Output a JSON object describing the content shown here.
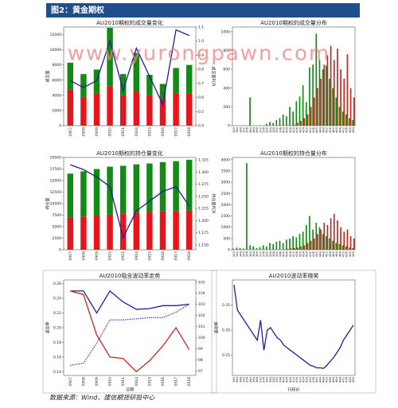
{
  "header": {
    "title": "图2：黄金期权"
  },
  "watermark": "www.yurongpawn.com",
  "source": "数据来源：Wind，建信期货研投中心",
  "chart_data": [
    {
      "type": "combo",
      "title": "AU2010期权的成交量变化",
      "ylabel": "成交量",
      "y2label": "成交量PCR",
      "categories": [
        "0907",
        "0908",
        "0909",
        "0910",
        "0911",
        "0914",
        "0915",
        "0916",
        "0917",
        "0918"
      ],
      "ylim": [
        0,
        13000
      ],
      "yticks": [
        0,
        2000,
        4000,
        6000,
        8000,
        10000,
        12000
      ],
      "y2lim": [
        0.4,
        1.1
      ],
      "y2ticks": [
        0.4,
        0.5,
        0.6,
        0.7,
        0.8,
        0.9,
        {
          "value": 1,
          "label": "1.0"
        },
        1.1
      ],
      "series": [
        {
          "color": "#e8141b",
          "values": [
            4800,
            3800,
            4200,
            5200,
            4000,
            4500,
            4000,
            3500,
            4200,
            4200
          ]
        },
        {
          "color": "#138a13",
          "values": [
            3500,
            3000,
            3200,
            7700,
            2800,
            5100,
            2700,
            2000,
            3400,
            3800
          ]
        },
        {
          "color": "#1f1f9a",
          "axis": "y2",
          "values": [
            0.72,
            0.67,
            0.72,
            1.0,
            0.65,
            0.95,
            0.75,
            0.55,
            1.08,
            1.04
          ]
        }
      ]
    },
    {
      "type": "bar",
      "title": "AU2010期权的成交量分布",
      "categories": [
        "340",
        "344",
        "348",
        "352",
        "356",
        "360",
        "364",
        "368",
        "372",
        "376",
        "380",
        "384",
        "388",
        "392",
        "396",
        "400",
        "404",
        "408",
        "412",
        "416",
        "420",
        "424",
        "428",
        "432",
        "436",
        "440",
        "444",
        "448",
        "452",
        "456",
        "460",
        "464",
        "468",
        "472",
        "476",
        "480",
        "484"
      ],
      "ylim": [
        0,
        1050
      ],
      "yticks": [
        0,
        200,
        400,
        600,
        800,
        1000
      ],
      "series": [
        {
          "color": "#138a13",
          "values": [
            0,
            0,
            0,
            0,
            0,
            300,
            0,
            0,
            0,
            0,
            20,
            40,
            30,
            60,
            80,
            120,
            100,
            200,
            150,
            260,
            310,
            430,
            250,
            620,
            650,
            980,
            700,
            600,
            640,
            500,
            400,
            300,
            200,
            150,
            120,
            80,
            60
          ]
        },
        {
          "color": "#c0281e",
          "values": [
            0,
            0,
            0,
            0,
            0,
            0,
            0,
            0,
            0,
            0,
            0,
            0,
            0,
            0,
            0,
            0,
            0,
            0,
            10,
            30,
            50,
            80,
            120,
            200,
            300,
            400,
            500,
            650,
            750,
            850,
            700,
            820,
            600,
            500,
            760,
            400,
            300
          ]
        }
      ]
    },
    {
      "type": "combo",
      "title": "AU2010期权的持仓量变化",
      "ylabel": "持仓量",
      "y2label": "持仓量PCR",
      "categories": [
        "0907",
        "0908",
        "0909",
        "0910",
        "0911",
        "0914",
        "0915",
        "0916",
        "0917",
        "0918"
      ],
      "ylim": [
        0,
        20000
      ],
      "yticks": [
        0,
        2500,
        5000,
        7500,
        10000,
        12500,
        15000,
        17500,
        20000
      ],
      "y2lim": [
        1.14,
        1.33
      ],
      "y2ticks": [
        {
          "value": 1.15,
          "label": "1.150"
        },
        {
          "value": 1.175,
          "label": "1.175"
        },
        {
          "value": 1.2,
          "label": "1.200"
        },
        {
          "value": 1.225,
          "label": "1.225"
        },
        {
          "value": 1.25,
          "label": "1.250"
        },
        {
          "value": 1.275,
          "label": "1.275"
        },
        {
          "value": 1.3,
          "label": "1.300"
        },
        {
          "value": 1.325,
          "label": "1.325"
        }
      ],
      "series": [
        {
          "color": "#e8141b",
          "values": [
            7000,
            7200,
            7400,
            7600,
            7800,
            8000,
            8200,
            8300,
            8400,
            8500
          ]
        },
        {
          "color": "#138a13",
          "values": [
            9500,
            9800,
            10100,
            10400,
            10400,
            10500,
            10500,
            10700,
            10800,
            11000
          ]
        },
        {
          "color": "#1f1f9a",
          "axis": "y2",
          "values": [
            1.315,
            1.305,
            1.29,
            1.27,
            1.165,
            1.22,
            1.24,
            1.26,
            1.27,
            1.23
          ]
        }
      ]
    },
    {
      "type": "bar",
      "title": "AU2010期权的持仓量分布",
      "categories": [
        "340",
        "344",
        "348",
        "352",
        "356",
        "360",
        "364",
        "368",
        "372",
        "376",
        "380",
        "384",
        "388",
        "392",
        "396",
        "400",
        "404",
        "408",
        "412",
        "416",
        "420",
        "424",
        "428",
        "432",
        "436",
        "440",
        "444",
        "448",
        "452",
        "456",
        "460",
        "464",
        "468",
        "472",
        "476",
        "480",
        "484"
      ],
      "ylim": [
        0,
        4100
      ],
      "yticks": [
        0,
        500,
        1000,
        1500,
        2000,
        2500,
        3000,
        3500,
        4000
      ],
      "series": [
        {
          "color": "#138a13",
          "values": [
            50,
            100,
            80,
            60,
            3850,
            200,
            150,
            80,
            120,
            200,
            150,
            300,
            250,
            350,
            400,
            300,
            450,
            500,
            600,
            550,
            700,
            800,
            1100,
            1500,
            900,
            1200,
            1000,
            700,
            600,
            500,
            400,
            300,
            250,
            200,
            150,
            100,
            80
          ]
        },
        {
          "color": "#c0281e",
          "values": [
            0,
            0,
            0,
            0,
            0,
            0,
            0,
            0,
            0,
            0,
            0,
            0,
            0,
            0,
            0,
            20,
            40,
            60,
            80,
            100,
            150,
            200,
            300,
            400,
            500,
            700,
            900,
            1200,
            1100,
            1400,
            1600,
            1300,
            1000,
            800,
            900,
            600,
            500
          ]
        }
      ]
    },
    {
      "type": "line",
      "title": "AU2010隐含波动率走势",
      "ylabel": "波动率",
      "xlabel": "日期",
      "frame": true,
      "categories": [
        "0907",
        "0908",
        "0909",
        "0910",
        "0911",
        "0914",
        "0915",
        "0916",
        "0917",
        "0918"
      ],
      "ylim": [
        0.135,
        0.265
      ],
      "yticks": [
        0.14,
        0.16,
        0.18,
        {
          "value": 0.2,
          "label": "0.20"
        },
        0.22,
        0.24,
        0.26
      ],
      "y2lim": [
        96.6,
        105.2
      ],
      "y2ticks": [
        97,
        98,
        99,
        100,
        101,
        102,
        103,
        104,
        105
      ],
      "series": [
        {
          "color": "#1f1f9a",
          "values": [
            0.25,
            0.25,
            0.22,
            0.25,
            0.235,
            0.225,
            0.226,
            0.23,
            0.23,
            0.232
          ]
        },
        {
          "color": "#c0281e",
          "values": [
            0.25,
            0.245,
            0.19,
            0.16,
            0.158,
            0.14,
            0.155,
            0.175,
            0.2,
            0.17
          ]
        },
        {
          "color": "#1f1f9a",
          "axis": "y2",
          "style": "dotted",
          "values": [
            97.5,
            97.7,
            99.5,
            101.6,
            101.6,
            101.7,
            101.8,
            101.8,
            102.3,
            103
          ]
        }
      ]
    },
    {
      "type": "line",
      "title": "AU2010波动率微笑",
      "ylabel": "波动率",
      "xlabel": "行权价",
      "frame": true,
      "categories": [
        "340",
        "344",
        "348",
        "352",
        "356",
        "360",
        "364",
        "368",
        "372",
        "376",
        "380",
        "384",
        "388",
        "392",
        "396",
        "400",
        "404",
        "408",
        "412",
        "416",
        "420",
        "424",
        "428",
        "432",
        "436",
        "440",
        "444",
        "448",
        "452",
        "456",
        "460",
        "464",
        "468",
        "472",
        "476",
        "480",
        "484"
      ],
      "ylim": [
        0.21,
        0.4
      ],
      "yticks": [
        0.25,
        {
          "value": 0.3,
          "label": "0.30"
        },
        0.35
      ],
      "series": [
        {
          "color": "#1f1f9a",
          "values": [
            0.39,
            0.34,
            0.33,
            0.32,
            0.31,
            0.3,
            0.29,
            0.28,
            0.32,
            0.26,
            0.3,
            0.305,
            0.295,
            0.285,
            0.28,
            0.27,
            0.265,
            0.26,
            0.255,
            0.25,
            0.245,
            0.24,
            0.235,
            0.23,
            0.228,
            0.225,
            0.225,
            0.224,
            0.23,
            0.238,
            0.245,
            0.255,
            0.265,
            0.28,
            0.29,
            0.3,
            0.31
          ]
        }
      ]
    }
  ]
}
